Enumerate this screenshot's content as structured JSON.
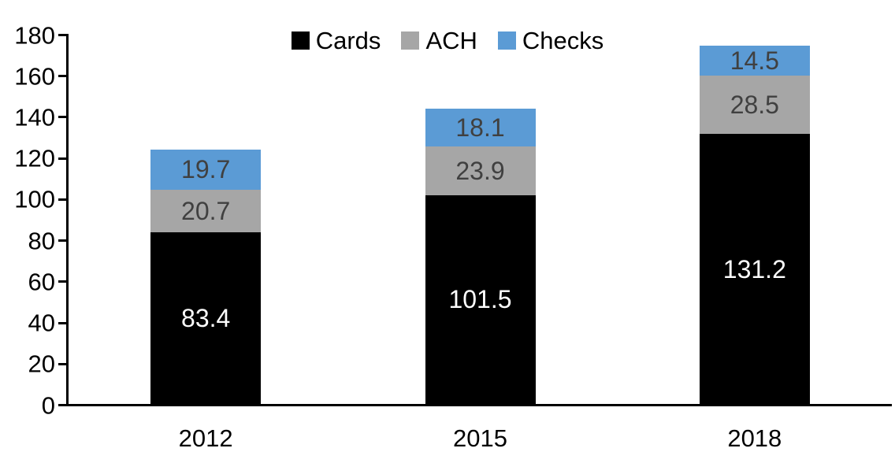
{
  "chart_data": {
    "type": "bar",
    "stacked": true,
    "title": "",
    "xlabel": "",
    "ylabel": "",
    "categories": [
      "2012",
      "2015",
      "2018"
    ],
    "series": [
      {
        "name": "Cards",
        "color": "#000000",
        "label_color": "#FFFFFF",
        "values": [
          83.4,
          101.5,
          131.2
        ]
      },
      {
        "name": "ACH",
        "color": "#A6A6A6",
        "label_color": "#404040",
        "values": [
          20.7,
          23.9,
          28.5
        ]
      },
      {
        "name": "Checks",
        "color": "#5B9BD5",
        "label_color": "#404040",
        "values": [
          19.7,
          18.1,
          14.5
        ]
      }
    ],
    "totals": [
      123.8,
      143.5,
      174.2
    ],
    "ylim": [
      0,
      180
    ],
    "ytick_step": 20,
    "ytick_labels": [
      "0",
      "20",
      "40",
      "60",
      "80",
      "100",
      "120",
      "140",
      "160",
      "180"
    ],
    "legend_position": "top",
    "legend_labels": [
      "Cards",
      "ACH",
      "Checks"
    ],
    "grid": false,
    "axis_color": "#000000",
    "background_color": "#FFFFFF"
  }
}
